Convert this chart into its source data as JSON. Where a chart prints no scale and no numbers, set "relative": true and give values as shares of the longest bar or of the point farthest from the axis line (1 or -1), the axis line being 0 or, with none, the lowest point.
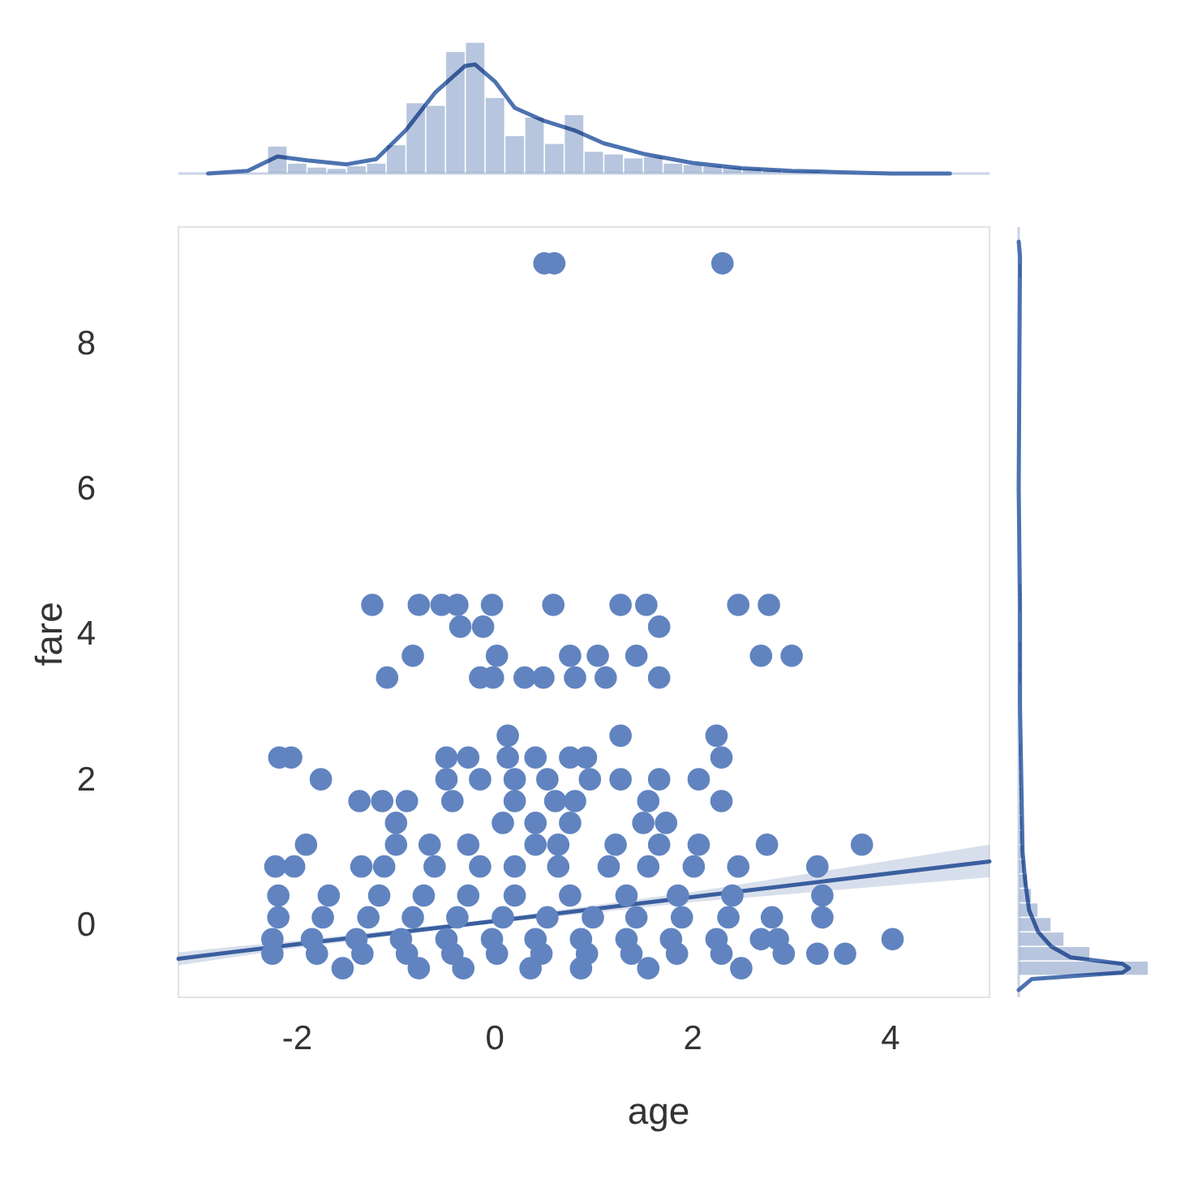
{
  "chart_data": [
    {
      "type": "scatter",
      "xlabel": "age",
      "ylabel": "fare",
      "xlim": [
        -3.2,
        5.0
      ],
      "xticks": [
        -2,
        0,
        2,
        4
      ],
      "ylim": [
        -1.0,
        9.6
      ],
      "yticks": [
        0,
        2,
        4,
        6,
        8
      ],
      "series": [
        {
          "marker": "circle",
          "color": "#6184c0",
          "x": [
            0.5,
            0.6,
            2.3,
            -1.24,
            -0.77,
            -0.54,
            -0.38,
            -0.03,
            0.59,
            1.27,
            1.53,
            2.46,
            2.77,
            -0.35,
            -0.12,
            1.66,
            -0.83,
            0.02,
            0.76,
            1.04,
            1.43,
            2.69,
            3.0,
            -1.09,
            -0.15,
            -0.02,
            0.3,
            0.49,
            0.81,
            1.12,
            1.66,
            0.13,
            1.27,
            2.24,
            -2.18,
            -2.06,
            -0.49,
            -0.27,
            0.13,
            0.41,
            0.76,
            0.92,
            2.29,
            -1.76,
            -0.49,
            -0.15,
            0.2,
            0.53,
            0.96,
            1.27,
            1.66,
            2.06,
            -1.37,
            -1.14,
            -0.89,
            -0.43,
            0.2,
            0.61,
            0.81,
            1.55,
            2.29,
            -1.0,
            0.08,
            0.41,
            0.76,
            1.5,
            1.73,
            -1.91,
            -1.0,
            -0.66,
            -0.27,
            0.41,
            0.64,
            1.22,
            1.66,
            2.06,
            2.75,
            3.71,
            -2.22,
            -2.03,
            -1.35,
            -1.12,
            -0.61,
            -0.15,
            0.2,
            0.64,
            1.15,
            1.55,
            2.01,
            2.46,
            3.26,
            -2.19,
            -1.68,
            -1.17,
            -0.72,
            -0.27,
            0.2,
            0.76,
            1.33,
            1.85,
            2.4,
            3.31,
            -2.19,
            -1.74,
            -1.28,
            -0.83,
            -0.38,
            0.08,
            0.53,
            0.99,
            1.43,
            1.89,
            2.36,
            2.8,
            3.31,
            -2.25,
            -1.85,
            -1.4,
            -0.95,
            -0.49,
            -0.03,
            0.41,
            0.87,
            1.33,
            1.78,
            2.24,
            2.69,
            2.86,
            4.02,
            -2.25,
            -1.8,
            -1.34,
            -0.89,
            -0.43,
            0.02,
            0.47,
            0.93,
            1.38,
            1.84,
            2.29,
            2.92,
            3.26,
            3.54,
            -1.54,
            -0.77,
            -0.32,
            0.36,
            0.87,
            1.55,
            2.49
          ],
          "values": [
            9.1,
            9.1,
            9.1,
            4.4,
            4.4,
            4.4,
            4.4,
            4.4,
            4.4,
            4.4,
            4.4,
            4.4,
            4.4,
            4.1,
            4.1,
            4.1,
            3.7,
            3.7,
            3.7,
            3.7,
            3.7,
            3.7,
            3.7,
            3.4,
            3.4,
            3.4,
            3.4,
            3.4,
            3.4,
            3.4,
            3.4,
            2.6,
            2.6,
            2.6,
            2.3,
            2.3,
            2.3,
            2.3,
            2.3,
            2.3,
            2.3,
            2.3,
            2.3,
            2.0,
            2.0,
            2.0,
            2.0,
            2.0,
            2.0,
            2.0,
            2.0,
            2.0,
            1.7,
            1.7,
            1.7,
            1.7,
            1.7,
            1.7,
            1.7,
            1.7,
            1.7,
            1.4,
            1.4,
            1.4,
            1.4,
            1.4,
            1.4,
            1.1,
            1.1,
            1.1,
            1.1,
            1.1,
            1.1,
            1.1,
            1.1,
            1.1,
            1.1,
            1.1,
            0.8,
            0.8,
            0.8,
            0.8,
            0.8,
            0.8,
            0.8,
            0.8,
            0.8,
            0.8,
            0.8,
            0.8,
            0.8,
            0.4,
            0.4,
            0.4,
            0.4,
            0.4,
            0.4,
            0.4,
            0.4,
            0.4,
            0.4,
            0.4,
            0.1,
            0.1,
            0.1,
            0.1,
            0.1,
            0.1,
            0.1,
            0.1,
            0.1,
            0.1,
            0.1,
            0.1,
            0.1,
            -0.2,
            -0.2,
            -0.2,
            -0.2,
            -0.2,
            -0.2,
            -0.2,
            -0.2,
            -0.2,
            -0.2,
            -0.2,
            -0.2,
            -0.2,
            -0.2,
            -0.4,
            -0.4,
            -0.4,
            -0.4,
            -0.4,
            -0.4,
            -0.4,
            -0.4,
            -0.4,
            -0.4,
            -0.4,
            -0.4,
            -0.4,
            -0.4,
            -0.6,
            -0.6,
            -0.6,
            -0.6,
            -0.6,
            -0.6,
            -0.6
          ]
        },
        {
          "type": "line",
          "color": "#3a5f9f",
          "x": [
            -3.2,
            -2,
            0,
            2,
            5
          ],
          "values": [
            -0.47,
            -0.27,
            0.05,
            0.38,
            0.87
          ],
          "lower": [
            -0.56,
            -0.32,
            0.02,
            0.31,
            0.65
          ],
          "upper": [
            -0.38,
            -0.22,
            0.08,
            0.45,
            1.1
          ]
        }
      ]
    },
    {
      "type": "histogram",
      "relative": true,
      "xlim": [
        -3.2,
        5.0
      ],
      "series": [
        {
          "color": "#b7c6de",
          "bins": [
            -2.3,
            -2.1,
            -1.9,
            -1.7,
            -1.5,
            -1.3,
            -1.1,
            -0.9,
            -0.7,
            -0.5,
            -0.3,
            -0.1,
            0.1,
            0.3,
            0.5,
            0.7,
            0.9,
            1.1,
            1.3,
            1.5,
            1.7,
            1.9,
            2.1,
            2.3,
            2.5,
            2.7,
            2.9,
            3.1,
            3.3,
            3.5,
            3.7,
            3.9,
            4.1
          ],
          "values": [
            0.21,
            0.08,
            0.05,
            0.04,
            0.06,
            0.08,
            0.22,
            0.54,
            0.52,
            0.93,
            1.0,
            0.58,
            0.29,
            0.43,
            0.23,
            0.45,
            0.17,
            0.15,
            0.12,
            0.13,
            0.08,
            0.07,
            0.06,
            0.05,
            0.04,
            0.03,
            0.02,
            0.02,
            0.01,
            0.01,
            0,
            0.01
          ]
        },
        {
          "type": "line",
          "color": "#4c72b0",
          "x": [
            -2.9,
            -2.5,
            -2.2,
            -1.9,
            -1.5,
            -1.2,
            -0.9,
            -0.6,
            -0.3,
            -0.2,
            0.0,
            0.2,
            0.5,
            0.8,
            1.1,
            1.5,
            2.0,
            2.5,
            3.0,
            3.5,
            4.0,
            4.6
          ],
          "values": [
            0,
            0.02,
            0.13,
            0.1,
            0.07,
            0.11,
            0.33,
            0.62,
            0.82,
            0.83,
            0.7,
            0.5,
            0.4,
            0.33,
            0.23,
            0.15,
            0.08,
            0.04,
            0.02,
            0.01,
            0,
            0
          ]
        }
      ]
    },
    {
      "type": "histogram",
      "relative": true,
      "orientation": "horizontal",
      "ylim": [
        -1.0,
        9.6
      ],
      "series": [
        {
          "color": "#b7c6de",
          "bins": [
            -0.7,
            -0.5,
            -0.3,
            -0.1,
            0.1,
            0.3,
            0.5,
            0.7,
            0.9,
            1.1,
            1.3,
            1.5,
            1.7,
            1.9,
            2.1,
            2.3,
            2.5,
            2.7,
            2.9,
            3.1,
            3.3,
            3.5,
            3.7,
            3.9,
            4.1,
            4.3,
            4.5,
            4.7,
            4.9,
            5.1,
            5.3,
            5.5,
            5.7,
            5.9,
            6.1,
            6.3,
            6.5,
            6.7,
            6.9,
            7.1,
            7.3,
            7.5,
            7.7,
            7.9,
            8.1,
            8.3,
            8.5,
            8.7,
            8.9,
            9.1,
            9.3
          ],
          "values": [
            1.0,
            0.55,
            0.35,
            0.25,
            0.15,
            0.1,
            0.07,
            0.05,
            0.04,
            0.03,
            0.03,
            0.02,
            0.02,
            0.02,
            0.02,
            0.02,
            0.01,
            0.01,
            0.01,
            0.01,
            0.02,
            0.02,
            0.02,
            0.01,
            0.01,
            0.02,
            0.02,
            0,
            0,
            0,
            0,
            0,
            0,
            0,
            0,
            0,
            0,
            0,
            0,
            0,
            0,
            0,
            0,
            0,
            0,
            0,
            0,
            0,
            0.02,
            0
          ]
        },
        {
          "type": "line",
          "color": "#4c72b0",
          "x": [
            -0.9,
            -0.75,
            -0.66,
            -0.6,
            -0.54,
            -0.45,
            -0.3,
            -0.1,
            0.2,
            0.6,
            1.0,
            2.0,
            3.0,
            4.4,
            6.0,
            9.2,
            9.4
          ],
          "values": [
            0,
            0.1,
            0.8,
            0.85,
            0.8,
            0.4,
            0.25,
            0.15,
            0.08,
            0.05,
            0.03,
            0.02,
            0.01,
            0.01,
            0,
            0.01,
            0
          ]
        }
      ]
    }
  ]
}
